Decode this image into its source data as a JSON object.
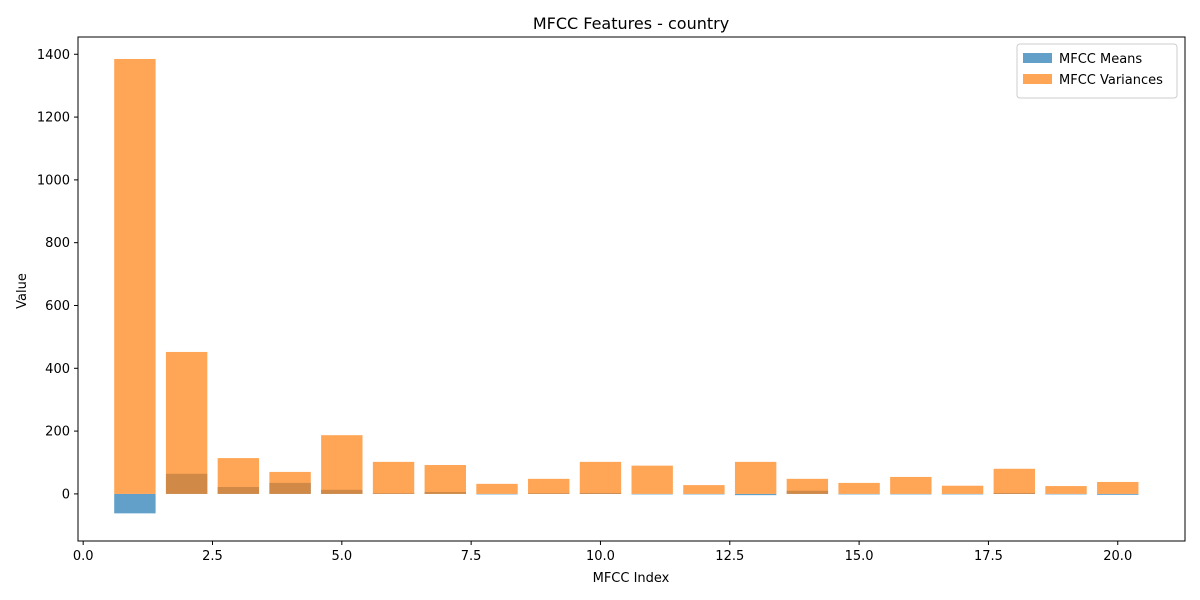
{
  "chart_data": {
    "type": "bar",
    "title": "MFCC Features - country",
    "xlabel": "MFCC Index",
    "ylabel": "Value",
    "xlim": [
      -0.1,
      21.3
    ],
    "ylim": [
      -150,
      1455
    ],
    "xticks": [
      0.0,
      2.5,
      5.0,
      7.5,
      10.0,
      12.5,
      15.0,
      17.5,
      20.0
    ],
    "xtick_labels": [
      "0.0",
      "2.5",
      "5.0",
      "7.5",
      "10.0",
      "12.5",
      "15.0",
      "17.5",
      "20.0"
    ],
    "yticks": [
      0,
      200,
      400,
      600,
      800,
      1000,
      1200,
      1400
    ],
    "ytick_labels": [
      "0",
      "200",
      "400",
      "600",
      "800",
      "1000",
      "1200",
      "1400"
    ],
    "x": [
      1,
      2,
      3,
      4,
      5,
      6,
      7,
      8,
      9,
      10,
      11,
      12,
      13,
      14,
      15,
      16,
      17,
      18,
      19,
      20
    ],
    "bar_width": 0.8,
    "grid": false,
    "legend_position": "top-right",
    "series": [
      {
        "name": "MFCC Means",
        "color": "#1f77b4",
        "opacity": 0.7,
        "values": [
          -62,
          64,
          22,
          35,
          13,
          2,
          6,
          0,
          2,
          3,
          0,
          0,
          -4,
          10,
          0,
          0,
          0,
          3,
          -1,
          -3
        ]
      },
      {
        "name": "MFCC Variances",
        "color": "#ff7f0e",
        "opacity": 0.7,
        "values": [
          1385,
          452,
          114,
          70,
          187,
          102,
          92,
          32,
          48,
          102,
          90,
          28,
          102,
          48,
          35,
          54,
          26,
          80,
          25,
          38
        ]
      }
    ]
  }
}
